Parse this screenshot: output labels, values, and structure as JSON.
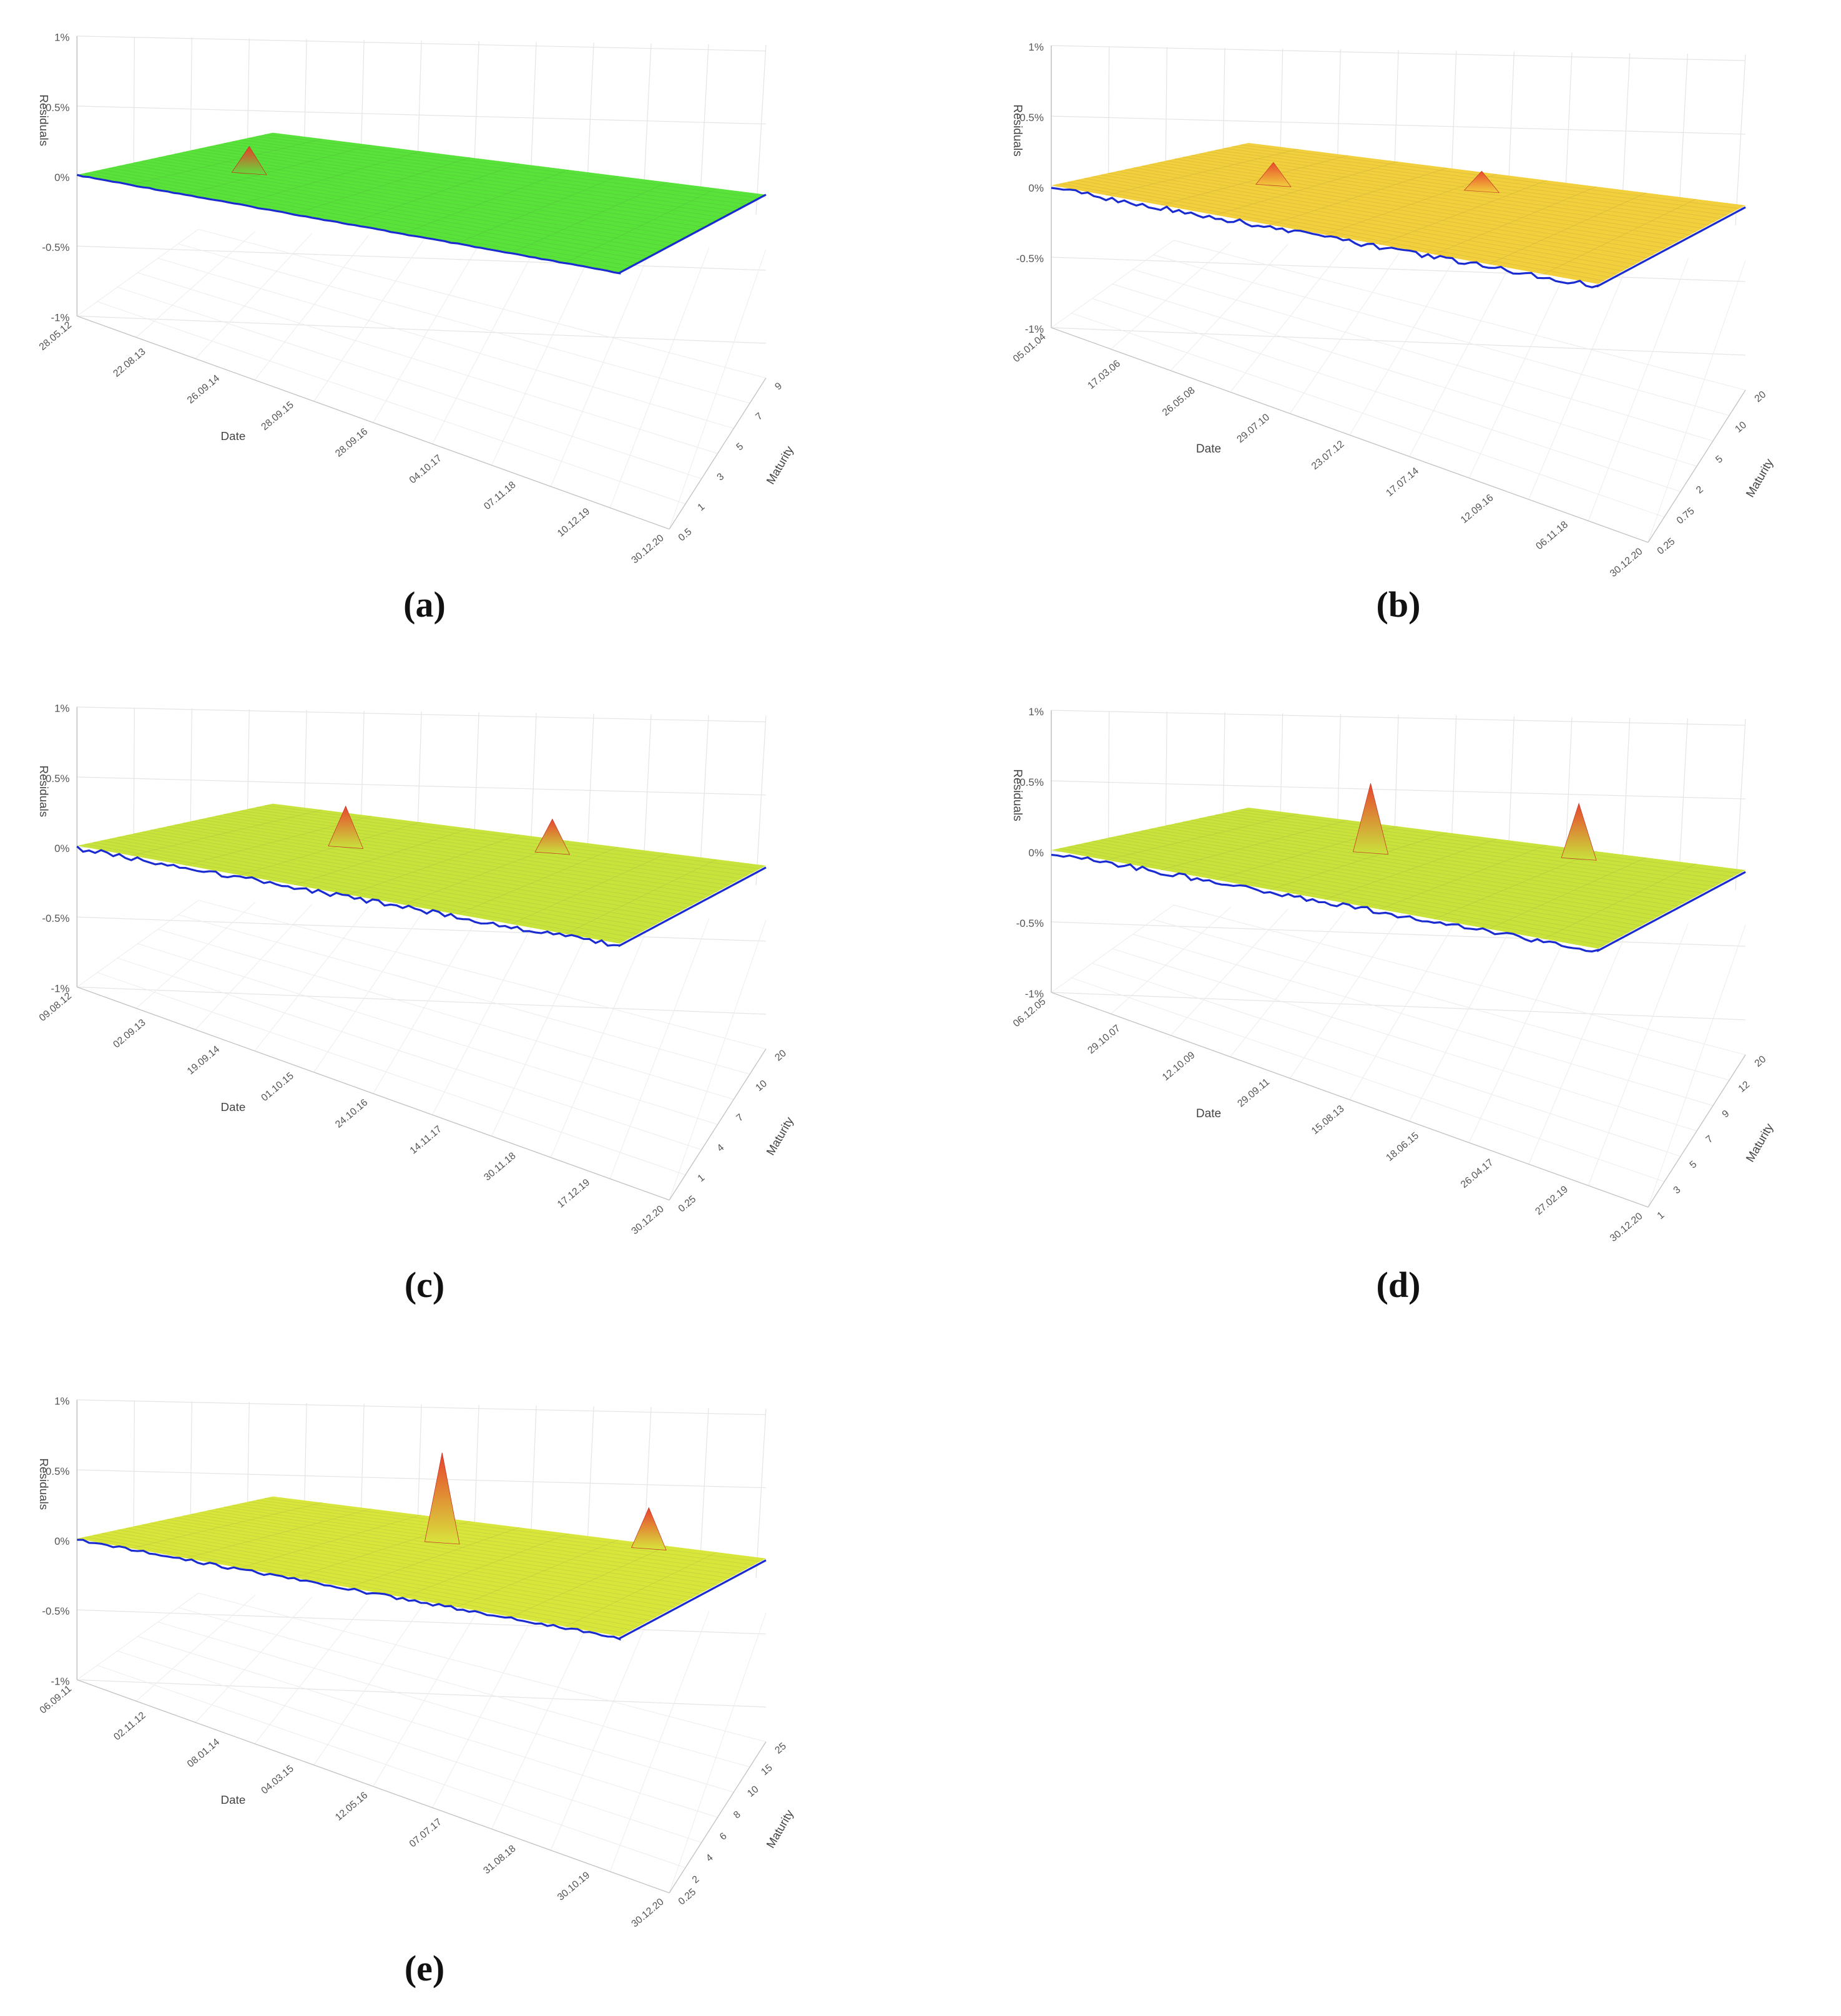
{
  "chart_data": [
    {
      "type": "surface",
      "panel_label": "a",
      "xlabel": "Date",
      "ylabel": "Maturity",
      "zlabel": "Residuals",
      "z_ticks": [
        "1%",
        "0.5%",
        "0%",
        "-0.5%",
        "-1%"
      ],
      "zlim": [
        -1,
        1
      ],
      "date_ticks": [
        "28.05.12",
        "22.08.13",
        "26.09.14",
        "28.09.15",
        "28.09.16",
        "04.10.17",
        "07.11.18",
        "10.12.19",
        "30.12.20"
      ],
      "maturity_ticks": [
        "9",
        "7",
        "5",
        "3",
        "1",
        "0.5"
      ],
      "colors": {
        "low": "#1a2bd0",
        "mid": "#4fe23a",
        "high": "#ee3b2a",
        "surface": "#59e33a"
      },
      "peaks": [
        {
          "date": "05.2016",
          "maturity": 7,
          "residual": 0.15
        }
      ]
    },
    {
      "type": "surface",
      "panel_label": "b",
      "xlabel": "Date",
      "ylabel": "Maturity",
      "zlabel": "Residuals",
      "z_ticks": [
        "1%",
        "0.5%",
        "0%",
        "-0.5%",
        "-1%"
      ],
      "zlim": [
        -1,
        1
      ],
      "date_ticks": [
        "05.01.04",
        "17.03.06",
        "26.05.08",
        "29.07.10",
        "23.07.12",
        "17.07.14",
        "12.09.16",
        "06.11.18",
        "30.12.20"
      ],
      "maturity_ticks": [
        "20",
        "10",
        "5",
        "2",
        "0.75",
        "0.25"
      ],
      "colors": {
        "low": "#1a2bd0",
        "mid": "#f0d53a",
        "high": "#e84a2e",
        "surface": "#f2cf3c"
      },
      "peaks": [
        {
          "date": "2013",
          "maturity": 10,
          "residual": 0.12
        },
        {
          "date": "2015",
          "maturity": 10,
          "residual": 0.1
        }
      ]
    },
    {
      "type": "surface",
      "panel_label": "c",
      "xlabel": "Date",
      "ylabel": "Maturity",
      "zlabel": "Residuals",
      "z_ticks": [
        "1%",
        "0.5%",
        "0%",
        "-0.5%",
        "-1%"
      ],
      "zlim": [
        -1,
        1
      ],
      "date_ticks": [
        "09.08.12",
        "02.09.13",
        "19.09.14",
        "01.10.15",
        "24.10.16",
        "14.11.17",
        "30.11.18",
        "17.12.19",
        "30.12.20"
      ],
      "maturity_ticks": [
        "20",
        "10",
        "7",
        "4",
        "1",
        "0.25"
      ],
      "colors": {
        "low": "#1a2bd0",
        "mid": "#bfe43a",
        "high": "#e8452e",
        "surface": "#c8e43c"
      },
      "peaks": [
        {
          "date": "2014",
          "maturity": 10,
          "residual": 0.25
        },
        {
          "date": "2016",
          "maturity": 20,
          "residual": 0.2
        }
      ]
    },
    {
      "type": "surface",
      "panel_label": "d",
      "xlabel": "Date",
      "ylabel": "Maturity",
      "zlabel": "Residuals",
      "z_ticks": [
        "1%",
        "0.5%",
        "0%",
        "-0.5%",
        "-1%"
      ],
      "zlim": [
        -1,
        1
      ],
      "date_ticks": [
        "06.12.05",
        "29.10.07",
        "12.10.09",
        "29.09.11",
        "15.08.13",
        "18.06.15",
        "26.04.17",
        "27.02.19",
        "30.12.20"
      ],
      "maturity_ticks": [
        "20",
        "12",
        "9",
        "7",
        "5",
        "3",
        "1"
      ],
      "colors": {
        "low": "#1a2bd0",
        "mid": "#c3e43a",
        "high": "#e8452e",
        "surface": "#c9e33c"
      },
      "peaks": [
        {
          "date": "2011",
          "maturity": 12,
          "residual": 0.45
        },
        {
          "date": "2012",
          "maturity": 9,
          "residual": 0.35
        }
      ]
    },
    {
      "type": "surface",
      "panel_label": "e",
      "xlabel": "Date",
      "ylabel": "Maturity",
      "zlabel": "Residuals",
      "z_ticks": [
        "1%",
        "0.5%",
        "0%",
        "-0.5%",
        "-1%"
      ],
      "zlim": [
        -1,
        1
      ],
      "date_ticks": [
        "06.09.11",
        "02.11.12",
        "08.01.14",
        "04.03.15",
        "12.05.16",
        "07.07.17",
        "31.08.18",
        "30.10.19",
        "30.12.20"
      ],
      "maturity_ticks": [
        "25",
        "15",
        "10",
        "8",
        "6",
        "4",
        "2",
        "0.25"
      ],
      "colors": {
        "low": "#1a2bd0",
        "mid": "#d6e83a",
        "high": "#e8402e",
        "surface": "#d8e63c"
      },
      "peaks": [
        {
          "date": "2013",
          "maturity": 25,
          "residual": 0.6
        },
        {
          "date": "2012",
          "maturity": 10,
          "residual": 0.25
        }
      ]
    }
  ],
  "captions": [
    "(a)",
    "(b)",
    "(c)",
    "(d)",
    "(e)"
  ]
}
